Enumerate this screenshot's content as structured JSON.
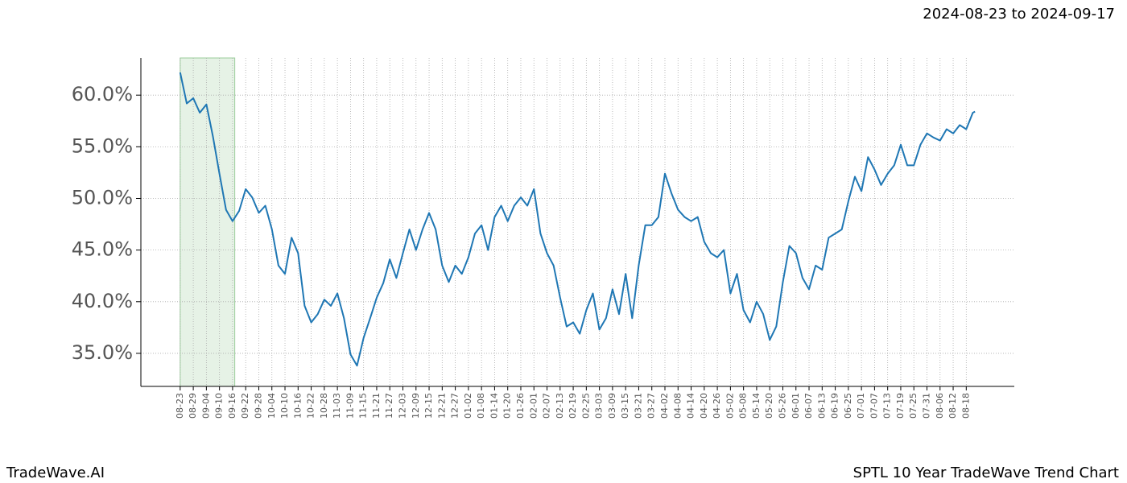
{
  "chart_data": {
    "type": "line",
    "title": "SPTL 10 Year TradeWave Trend Chart",
    "date_range": "2024-08-23 to 2024-09-17",
    "brand": "TradeWave.AI",
    "highlight_x": [
      0,
      25
    ],
    "highlight_color": "#e6f2e6",
    "xlim": [
      -18,
      382
    ],
    "ylim": [
      31.8,
      63.6
    ],
    "grid": true,
    "yticks": [
      {
        "value": 35,
        "label": "35.0%"
      },
      {
        "value": 40,
        "label": "40.0%"
      },
      {
        "value": 45,
        "label": "45.0%"
      },
      {
        "value": 50,
        "label": "50.0%"
      },
      {
        "value": 55,
        "label": "55.0%"
      },
      {
        "value": 60,
        "label": "60.0%"
      }
    ],
    "xticks": [
      {
        "value": 0,
        "label": "08-23"
      },
      {
        "value": 6,
        "label": "08-29"
      },
      {
        "value": 12,
        "label": "09-04"
      },
      {
        "value": 18,
        "label": "09-10"
      },
      {
        "value": 24,
        "label": "09-16"
      },
      {
        "value": 30,
        "label": "09-22"
      },
      {
        "value": 36,
        "label": "09-28"
      },
      {
        "value": 42,
        "label": "10-04"
      },
      {
        "value": 48,
        "label": "10-10"
      },
      {
        "value": 54,
        "label": "10-16"
      },
      {
        "value": 60,
        "label": "10-22"
      },
      {
        "value": 66,
        "label": "10-28"
      },
      {
        "value": 72,
        "label": "11-03"
      },
      {
        "value": 78,
        "label": "11-09"
      },
      {
        "value": 84,
        "label": "11-15"
      },
      {
        "value": 90,
        "label": "11-21"
      },
      {
        "value": 96,
        "label": "11-27"
      },
      {
        "value": 102,
        "label": "12-03"
      },
      {
        "value": 108,
        "label": "12-09"
      },
      {
        "value": 114,
        "label": "12-15"
      },
      {
        "value": 120,
        "label": "12-21"
      },
      {
        "value": 126,
        "label": "12-27"
      },
      {
        "value": 132,
        "label": "01-02"
      },
      {
        "value": 138,
        "label": "01-08"
      },
      {
        "value": 144,
        "label": "01-14"
      },
      {
        "value": 150,
        "label": "01-20"
      },
      {
        "value": 156,
        "label": "01-26"
      },
      {
        "value": 162,
        "label": "02-01"
      },
      {
        "value": 168,
        "label": "02-07"
      },
      {
        "value": 174,
        "label": "02-13"
      },
      {
        "value": 180,
        "label": "02-19"
      },
      {
        "value": 186,
        "label": "02-25"
      },
      {
        "value": 192,
        "label": "03-03"
      },
      {
        "value": 198,
        "label": "03-09"
      },
      {
        "value": 204,
        "label": "03-15"
      },
      {
        "value": 210,
        "label": "03-21"
      },
      {
        "value": 216,
        "label": "03-27"
      },
      {
        "value": 222,
        "label": "04-02"
      },
      {
        "value": 228,
        "label": "04-08"
      },
      {
        "value": 234,
        "label": "04-14"
      },
      {
        "value": 240,
        "label": "04-20"
      },
      {
        "value": 246,
        "label": "04-26"
      },
      {
        "value": 252,
        "label": "05-02"
      },
      {
        "value": 258,
        "label": "05-08"
      },
      {
        "value": 264,
        "label": "05-14"
      },
      {
        "value": 270,
        "label": "05-20"
      },
      {
        "value": 276,
        "label": "05-26"
      },
      {
        "value": 282,
        "label": "06-01"
      },
      {
        "value": 288,
        "label": "06-07"
      },
      {
        "value": 294,
        "label": "06-13"
      },
      {
        "value": 300,
        "label": "06-19"
      },
      {
        "value": 306,
        "label": "06-25"
      },
      {
        "value": 312,
        "label": "07-01"
      },
      {
        "value": 318,
        "label": "07-07"
      },
      {
        "value": 324,
        "label": "07-13"
      },
      {
        "value": 330,
        "label": "07-19"
      },
      {
        "value": 336,
        "label": "07-25"
      },
      {
        "value": 342,
        "label": "07-31"
      },
      {
        "value": 348,
        "label": "08-06"
      },
      {
        "value": 354,
        "label": "08-12"
      },
      {
        "value": 360,
        "label": "08-18"
      }
    ],
    "x": [
      0,
      3,
      6,
      9,
      12,
      15,
      18,
      21,
      24,
      27,
      30,
      33,
      36,
      39,
      42,
      45,
      48,
      51,
      54,
      57,
      60,
      63,
      66,
      69,
      72,
      75,
      78,
      81,
      84,
      87,
      90,
      93,
      96,
      99,
      102,
      105,
      108,
      111,
      114,
      117,
      120,
      123,
      126,
      129,
      132,
      135,
      138,
      141,
      144,
      147,
      150,
      153,
      156,
      159,
      162,
      165,
      168,
      171,
      174,
      177,
      180,
      183,
      186,
      189,
      192,
      195,
      198,
      201,
      204,
      207,
      210,
      213,
      216,
      219,
      222,
      225,
      228,
      231,
      234,
      237,
      240,
      243,
      246,
      249,
      252,
      255,
      258,
      261,
      264,
      267,
      270,
      273,
      276,
      279,
      282,
      285,
      288,
      291,
      294,
      297,
      300,
      303,
      306,
      309,
      312,
      315,
      318,
      321,
      324,
      327,
      330,
      333,
      336,
      339,
      342,
      345,
      348,
      351,
      354,
      357,
      360,
      363,
      364
    ],
    "series": [
      {
        "color": "#1f77b4",
        "values": [
          62.2,
          59.2,
          59.7,
          58.3,
          59.1,
          56.0,
          52.4,
          48.9,
          47.8,
          48.8,
          50.9,
          50.1,
          48.6,
          49.3,
          47.0,
          43.5,
          42.7,
          46.2,
          44.7,
          39.6,
          38.0,
          38.8,
          40.2,
          39.6,
          40.8,
          38.4,
          34.9,
          33.8,
          36.5,
          38.4,
          40.4,
          41.8,
          44.1,
          42.3,
          44.7,
          47.0,
          45.0,
          47.0,
          48.6,
          47.0,
          43.5,
          41.9,
          43.5,
          42.7,
          44.3,
          46.6,
          47.4,
          45.0,
          48.2,
          49.3,
          47.8,
          49.3,
          50.1,
          49.3,
          50.9,
          46.6,
          44.7,
          43.5,
          40.4,
          37.6,
          38.0,
          36.9,
          39.2,
          40.8,
          37.3,
          38.4,
          41.2,
          38.8,
          42.7,
          38.4,
          43.5,
          47.4,
          47.4,
          48.2,
          52.4,
          50.5,
          48.9,
          48.2,
          47.8,
          48.2,
          45.8,
          44.7,
          44.3,
          45.0,
          40.8,
          42.7,
          39.2,
          38.0,
          40.0,
          38.8,
          36.3,
          37.6,
          41.9,
          45.4,
          44.7,
          42.3,
          41.2,
          43.5,
          43.1,
          46.2,
          46.6,
          47.0,
          49.7,
          52.1,
          50.7,
          54.0,
          52.8,
          51.3,
          52.4,
          53.2,
          55.2,
          53.2,
          53.2,
          55.2,
          56.3,
          55.9,
          55.6,
          56.7,
          56.3,
          57.1,
          56.7,
          58.3,
          58.4
        ]
      }
    ]
  }
}
